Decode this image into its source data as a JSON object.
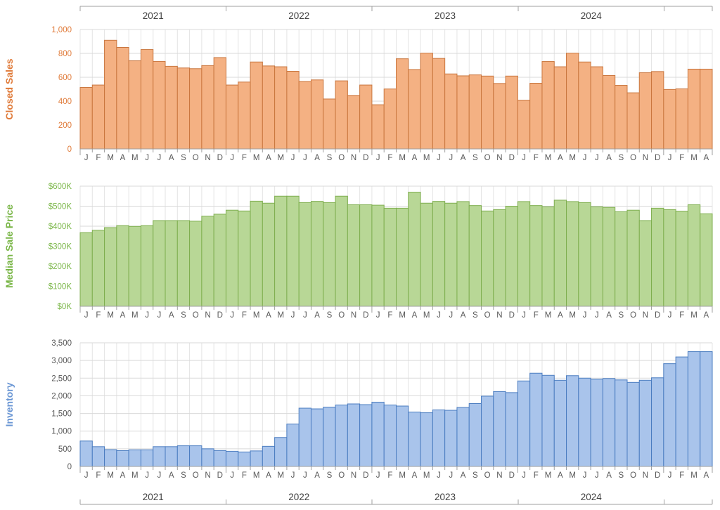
{
  "years": [
    "2021",
    "2022",
    "2023",
    "2024"
  ],
  "month_letters": [
    "J",
    "F",
    "M",
    "A",
    "M",
    "J",
    "J",
    "A",
    "S",
    "O",
    "N",
    "D"
  ],
  "chart_data": [
    {
      "type": "bar",
      "ylabel": "Closed Sales",
      "color": "#F4B183",
      "stroke": "#C9763E",
      "label_color": "#E07B3A",
      "tick_color": "#E07B3A",
      "ylim": [
        0,
        1000
      ],
      "yticks": [
        0,
        200,
        400,
        600,
        800,
        1000
      ],
      "ytick_labels": [
        "0",
        "200",
        "400",
        "600",
        "800",
        "1,000"
      ],
      "values": [
        515,
        535,
        910,
        850,
        738,
        832,
        733,
        692,
        678,
        672,
        698,
        765,
        535,
        560,
        728,
        695,
        688,
        650,
        565,
        578,
        418,
        570,
        448,
        535,
        370,
        502,
        755,
        665,
        802,
        758,
        628,
        612,
        620,
        610,
        548,
        610,
        408,
        550,
        732,
        688,
        802,
        728,
        688,
        615,
        532,
        470,
        638,
        648,
        498,
        503,
        668,
        668
      ]
    },
    {
      "type": "bar",
      "ylabel": "Median Sale Price",
      "color": "#B8D796",
      "stroke": "#7EAE4E",
      "label_color": "#7AB648",
      "tick_color": "#7AB648",
      "ylim": [
        0,
        600000
      ],
      "yticks": [
        0,
        100000,
        200000,
        300000,
        400000,
        500000,
        600000
      ],
      "ytick_labels": [
        "$0K",
        "$100K",
        "$200K",
        "$300K",
        "$400K",
        "$500K",
        "$600K"
      ],
      "values": [
        368000,
        380000,
        393000,
        403000,
        399000,
        403000,
        428000,
        428000,
        428000,
        425000,
        450000,
        460000,
        480000,
        476000,
        525000,
        515000,
        550000,
        550000,
        518000,
        524000,
        518000,
        550000,
        507000,
        507000,
        505000,
        490000,
        490000,
        570000,
        515000,
        524000,
        515000,
        523000,
        503000,
        476000,
        483000,
        500000,
        523000,
        503000,
        497000,
        530000,
        523000,
        518000,
        497000,
        494000,
        472000,
        480000,
        428000,
        490000,
        483000,
        475000,
        507000,
        462000
      ]
    },
    {
      "type": "bar",
      "ylabel": "Inventory",
      "color": "#A9C4EB",
      "stroke": "#4A7CC0",
      "label_color": "#6A96D4",
      "tick_color": "#595959",
      "ylim": [
        0,
        3500
      ],
      "yticks": [
        0,
        500,
        1000,
        1500,
        2000,
        2500,
        3000,
        3500
      ],
      "ytick_labels": [
        "0",
        "500",
        "1,000",
        "1,500",
        "2,000",
        "2,500",
        "3,000",
        "3,500"
      ],
      "values": [
        720,
        560,
        475,
        448,
        470,
        470,
        560,
        560,
        585,
        585,
        500,
        450,
        430,
        410,
        440,
        570,
        820,
        1200,
        1650,
        1630,
        1680,
        1740,
        1770,
        1750,
        1820,
        1740,
        1710,
        1540,
        1520,
        1600,
        1590,
        1670,
        1780,
        1990,
        2120,
        2090,
        2420,
        2640,
        2580,
        2440,
        2570,
        2500,
        2470,
        2490,
        2450,
        2380,
        2440,
        2510,
        2910,
        3100,
        3250,
        3250
      ]
    }
  ]
}
